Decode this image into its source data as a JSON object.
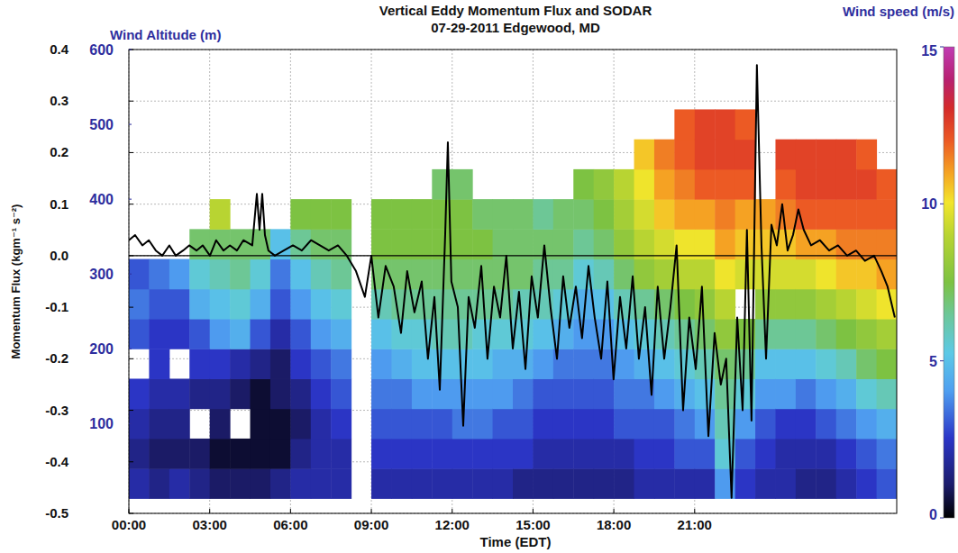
{
  "chart_data": {
    "type": "heatmap",
    "title": "Vertical Eddy Momentum Flux and SODAR",
    "subtitle": "07-29-2011 Edgewood, MD",
    "x_label": "Time (EDT)",
    "y_label": "Momentum Flux (kgm⁻¹ s⁻²)",
    "y2_label": "Wind Altitude (m)",
    "xlim": [
      0,
      28.5
    ],
    "xticks": [
      {
        "value": 0,
        "label": "00:00"
      },
      {
        "value": 3,
        "label": "03:00"
      },
      {
        "value": 6,
        "label": "06:00"
      },
      {
        "value": 9,
        "label": "09:00"
      },
      {
        "value": 12,
        "label": "12:00"
      },
      {
        "value": 15,
        "label": "15:00"
      },
      {
        "value": 18,
        "label": "18:00"
      },
      {
        "value": 21,
        "label": "21:00"
      }
    ],
    "ylim": [
      -0.5,
      0.4
    ],
    "yticks": [
      0.4,
      0.3,
      0.2,
      0.1,
      {
        "value": 0,
        "label": "0.0"
      },
      -0.1,
      -0.2,
      -0.3,
      -0.4,
      -0.5
    ],
    "y2lim": [
      -20,
      600
    ],
    "y2ticks": [
      100,
      200,
      300,
      400,
      500,
      600
    ],
    "grid": true,
    "heatmap": {
      "axis": "y2",
      "x": [
        0.375,
        1.125,
        1.875,
        2.625,
        3.375,
        4.125,
        4.875,
        5.625,
        6.375,
        7.125,
        7.875,
        8.625,
        9.375,
        10.125,
        10.875,
        11.625,
        12.375,
        13.125,
        13.875,
        14.625,
        15.375,
        16.125,
        16.875,
        17.625,
        18.375,
        19.125,
        19.875,
        20.625,
        21.375,
        22.125,
        22.875,
        23.625,
        24.375,
        25.125,
        25.875,
        26.625,
        27.375,
        28.125
      ],
      "y": [
        20,
        60,
        100,
        140,
        180,
        220,
        260,
        300,
        340,
        380,
        420,
        460,
        500
      ],
      "values": [
        [
          2,
          1.5,
          2,
          2.5,
          null,
          3,
          3.5,
          3,
          null,
          null,
          null,
          null,
          null
        ],
        [
          1.5,
          1,
          1.5,
          2,
          2.5,
          2.5,
          3,
          3.5,
          null,
          null,
          null,
          null,
          null
        ],
        [
          2,
          1,
          1.5,
          2,
          null,
          2.5,
          3,
          4,
          null,
          null,
          null,
          null,
          null
        ],
        [
          1.5,
          1,
          null,
          1.5,
          2.5,
          3,
          4.5,
          5.5,
          7,
          null,
          null,
          null,
          null
        ],
        [
          1,
          0.5,
          1,
          1.5,
          2.5,
          4,
          5,
          6,
          7,
          9,
          null,
          null,
          null
        ],
        [
          1,
          0.5,
          null,
          1,
          2,
          4.5,
          5.5,
          6.5,
          7,
          null,
          null,
          null,
          null
        ],
        [
          1,
          0.5,
          0.5,
          0.5,
          1.5,
          3,
          4.5,
          5.5,
          7,
          null,
          null,
          null,
          null
        ],
        [
          1.5,
          0.5,
          0.5,
          1,
          1,
          2,
          3,
          3.5,
          5,
          null,
          null,
          null,
          null
        ],
        [
          2,
          1.5,
          1,
          1.5,
          2.5,
          3,
          4,
          5,
          6.5,
          7.5,
          null,
          null,
          null
        ],
        [
          2,
          2,
          2,
          2.5,
          3,
          4,
          5,
          6,
          7,
          7.5,
          null,
          null,
          null
        ],
        [
          2,
          2,
          2.5,
          3,
          3.5,
          4.5,
          5.5,
          6.5,
          7,
          7.5,
          null,
          null,
          null
        ],
        [
          null,
          null,
          null,
          null,
          null,
          null,
          null,
          null,
          null,
          null,
          null,
          null,
          null
        ],
        [
          2,
          2.5,
          3,
          3.5,
          4,
          5,
          6,
          7,
          7.5,
          7.5,
          null,
          null,
          null
        ],
        [
          2,
          2.5,
          3,
          3.5,
          4.5,
          5.5,
          6.5,
          7,
          7.5,
          7.5,
          null,
          null,
          null
        ],
        [
          2,
          2.5,
          3,
          4,
          5,
          5.5,
          6.5,
          7,
          7.5,
          7.5,
          null,
          null,
          null
        ],
        [
          2,
          2.5,
          3,
          4,
          5,
          6,
          6.5,
          7,
          7.5,
          7.5,
          7,
          null,
          null
        ],
        [
          2,
          2.5,
          3.5,
          4,
          5,
          6,
          6.5,
          7,
          7.5,
          7.5,
          7,
          null,
          null
        ],
        [
          2,
          2.5,
          3.5,
          4,
          5,
          5.5,
          6.5,
          7,
          7.5,
          7,
          null,
          null,
          null
        ],
        [
          2,
          2.5,
          3,
          4,
          4.5,
          5.5,
          6.5,
          7,
          7,
          7,
          null,
          null,
          null
        ],
        [
          1.5,
          2.5,
          3,
          3.5,
          4.5,
          5.5,
          6,
          7,
          7,
          7,
          null,
          null,
          null
        ],
        [
          1.5,
          2,
          2.5,
          3,
          4,
          5,
          6,
          6.5,
          7,
          6.5,
          null,
          null,
          null
        ],
        [
          1.5,
          2,
          2.5,
          3,
          3.5,
          4.5,
          5.5,
          6.5,
          7,
          7,
          null,
          null,
          null
        ],
        [
          1.5,
          2,
          2.5,
          3,
          3.5,
          4,
          4.5,
          5.5,
          6.5,
          7,
          7.5,
          null,
          null
        ],
        [
          1.5,
          2,
          2.5,
          3,
          3.5,
          4,
          5,
          6,
          7,
          7.5,
          8,
          null,
          null
        ],
        [
          1.5,
          2,
          3,
          3.5,
          4,
          5,
          6,
          7,
          8,
          8.5,
          9,
          null,
          null
        ],
        [
          2,
          2.5,
          3,
          3.5,
          4.5,
          5.5,
          6.5,
          8,
          9,
          9.5,
          10,
          10.5,
          null
        ],
        [
          2,
          2.5,
          3,
          4,
          5,
          6,
          7,
          8.5,
          9.5,
          10.5,
          11,
          11.5,
          null
        ],
        [
          2,
          3,
          3.5,
          4.5,
          5.5,
          6.5,
          7.5,
          9,
          10,
          11,
          11.5,
          12,
          12
        ],
        [
          2,
          3,
          4,
          5,
          6,
          7,
          8,
          9,
          10,
          11,
          12,
          12.5,
          12.5
        ],
        [
          4,
          5.5,
          6,
          6.5,
          7,
          8,
          9,
          10,
          11,
          11.5,
          12,
          12.5,
          12.5
        ],
        [
          2.5,
          3,
          4,
          5.5,
          6.5,
          7.5,
          null,
          9.5,
          10.5,
          11,
          12,
          12.5,
          12
        ],
        [
          2,
          2.5,
          3,
          4,
          5,
          6.5,
          8,
          9.5,
          10.5,
          11,
          null,
          null,
          null
        ],
        [
          2,
          2,
          2.5,
          4,
          5,
          6.5,
          8,
          9.5,
          10.5,
          11.5,
          12,
          12.5,
          null
        ],
        [
          1.5,
          2,
          2.5,
          3.5,
          5,
          6.5,
          8,
          9.5,
          11,
          12,
          12.5,
          12.5,
          null
        ],
        [
          1.5,
          2,
          3,
          4,
          5.5,
          7,
          8.5,
          10,
          11,
          12,
          12.5,
          12.5,
          null
        ],
        [
          2,
          2.5,
          3.5,
          4.5,
          6,
          7.5,
          9,
          10.5,
          11.5,
          12,
          12.5,
          12.5,
          null
        ],
        [
          2.5,
          3,
          4,
          5.5,
          7,
          8,
          9.5,
          10.5,
          11.5,
          12,
          12.5,
          12,
          null
        ],
        [
          3,
          3.5,
          4.5,
          6,
          7.5,
          8.5,
          10,
          11,
          11.5,
          12,
          12,
          null,
          null
        ]
      ]
    },
    "colorbar": {
      "label": "Wind speed (m/s)",
      "lim": [
        0,
        15
      ],
      "ticks": [
        0,
        5,
        10,
        15
      ]
    },
    "series": [
      {
        "type": "line",
        "color": "#000000",
        "x": [
          0,
          0.23,
          0.5,
          0.74,
          1.0,
          1.24,
          1.5,
          1.74,
          2.01,
          2.24,
          2.51,
          2.74,
          3.01,
          3.24,
          3.51,
          3.75,
          4.01,
          4.25,
          4.58,
          4.75,
          4.85,
          4.95,
          5.05,
          5.18,
          5.42,
          5.75,
          6.09,
          6.42,
          6.76,
          7.09,
          7.42,
          7.76,
          8.09,
          8.43,
          8.76,
          9.0,
          9.26,
          9.53,
          9.83,
          10.1,
          10.33,
          10.6,
          10.87,
          11.1,
          11.34,
          11.54,
          11.74,
          11.84,
          11.97,
          12.21,
          12.41,
          12.61,
          12.84,
          13.08,
          13.31,
          13.55,
          13.78,
          14.01,
          14.25,
          14.48,
          14.72,
          14.95,
          15.18,
          15.42,
          15.65,
          15.89,
          16.12,
          16.35,
          16.59,
          16.82,
          17.06,
          17.29,
          17.53,
          17.76,
          17.99,
          18.23,
          18.46,
          18.7,
          18.93,
          19.16,
          19.4,
          19.63,
          19.87,
          20.1,
          20.33,
          20.57,
          20.8,
          21.04,
          21.27,
          21.51,
          21.74,
          21.97,
          22.17,
          22.37,
          22.58,
          22.78,
          22.94,
          23.11,
          23.31,
          23.48,
          23.65,
          23.85,
          24.05,
          24.25,
          24.45,
          24.65,
          24.85,
          25.05,
          25.32,
          25.65,
          25.99,
          26.32,
          26.66,
          26.99,
          27.32,
          27.66,
          27.93,
          28.16,
          28.43
        ],
        "values": [
          0.03,
          0.04,
          0.02,
          0.03,
          0.01,
          0,
          0.02,
          0,
          0.01,
          0.02,
          0.01,
          0.02,
          0,
          0.03,
          0.01,
          0.02,
          0.01,
          0.03,
          0.02,
          0.12,
          0.05,
          0.12,
          0.04,
          0.01,
          0,
          0.01,
          0.02,
          0.01,
          0.03,
          0.02,
          0.01,
          0.02,
          0,
          -0.03,
          -0.08,
          0,
          -0.12,
          -0.02,
          -0.06,
          -0.15,
          -0.03,
          -0.11,
          -0.05,
          -0.2,
          -0.08,
          -0.26,
          0.04,
          0.22,
          -0.05,
          -0.1,
          -0.33,
          -0.08,
          -0.14,
          -0.02,
          -0.2,
          -0.06,
          -0.12,
          0,
          -0.18,
          -0.07,
          -0.22,
          -0.04,
          -0.12,
          0.02,
          -0.1,
          -0.2,
          -0.04,
          -0.14,
          -0.06,
          -0.16,
          -0.02,
          -0.12,
          -0.2,
          -0.05,
          -0.24,
          -0.08,
          -0.18,
          -0.04,
          -0.2,
          -0.1,
          -0.27,
          -0.06,
          -0.2,
          -0.1,
          0.02,
          -0.3,
          -0.12,
          -0.22,
          -0.06,
          -0.35,
          -0.15,
          -0.25,
          -0.2,
          -0.47,
          -0.12,
          -0.3,
          0.05,
          -0.32,
          0.37,
          0.02,
          -0.2,
          0.06,
          0.02,
          0.1,
          0.01,
          0.04,
          0.09,
          0.05,
          0.02,
          0.03,
          0.01,
          0.02,
          0,
          0.01,
          -0.01,
          0,
          -0.03,
          -0.06,
          -0.12
        ]
      }
    ]
  }
}
